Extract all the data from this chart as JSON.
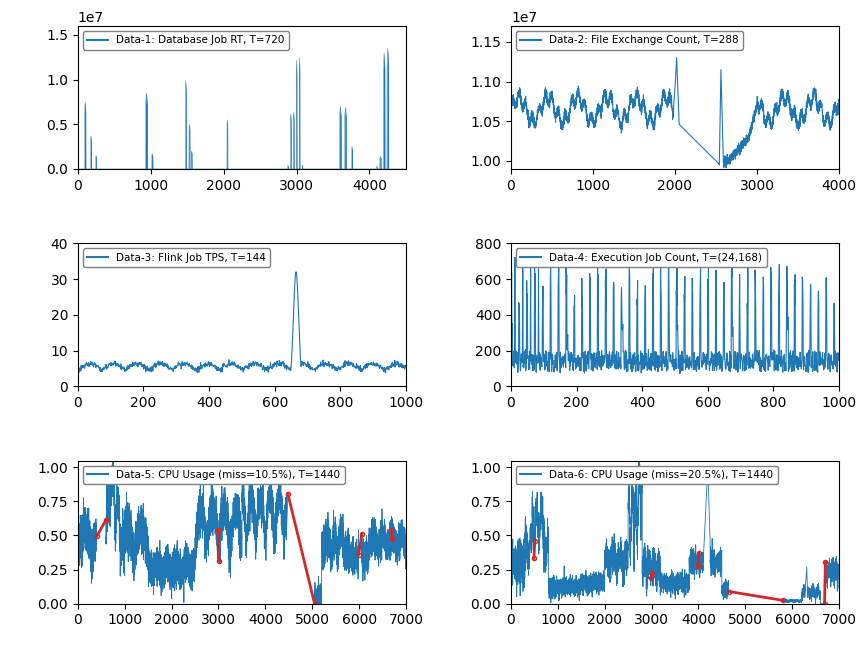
{
  "plots": [
    {
      "title": "Data-1: Database Job RT, T=720",
      "row": 0,
      "col": 0,
      "xlim": [
        0,
        4500
      ],
      "ylim": [
        0,
        16000000.0
      ],
      "color": "#1f77b4"
    },
    {
      "title": "Data-2: File Exchange Count, T=288",
      "row": 0,
      "col": 1,
      "xlim": [
        0,
        4000
      ],
      "ylim": [
        9900000.0,
        11700000.0
      ],
      "color": "#1f77b4"
    },
    {
      "title": "Data-3: Flink Job TPS, T=144",
      "row": 1,
      "col": 0,
      "xlim": [
        0,
        1000
      ],
      "ylim": [
        0,
        40
      ],
      "color": "#1f77b4"
    },
    {
      "title": "Data-4: Execution Job Count, T=(24,168)",
      "row": 1,
      "col": 1,
      "xlim": [
        0,
        1000
      ],
      "ylim": [
        0,
        800
      ],
      "color": "#1f77b4"
    },
    {
      "title": "Data-5: CPU Usage (miss=10.5%), T=1440",
      "row": 2,
      "col": 0,
      "xlim": [
        0,
        7000
      ],
      "ylim": [
        0,
        1.05
      ],
      "color": "#1f77b4",
      "red_color": "#d62728",
      "red_segs": [
        [
          400,
          600
        ],
        [
          2990,
          3010
        ],
        [
          4500,
          5050
        ],
        [
          5950,
          6050
        ],
        [
          6680,
          6720
        ]
      ]
    },
    {
      "title": "Data-6: CPU Usage (miss=20.5%), T=1440",
      "row": 2,
      "col": 1,
      "xlim": [
        0,
        7000
      ],
      "ylim": [
        0,
        1.05
      ],
      "color": "#1f77b4",
      "red_color": "#d62728",
      "red_segs": [
        [
          480,
          520
        ],
        [
          2980,
          3010
        ],
        [
          3980,
          4020
        ],
        [
          4650,
          5800
        ],
        [
          6680,
          6720
        ]
      ]
    }
  ],
  "figsize": [
    8.65,
    6.49
  ],
  "dpi": 100
}
